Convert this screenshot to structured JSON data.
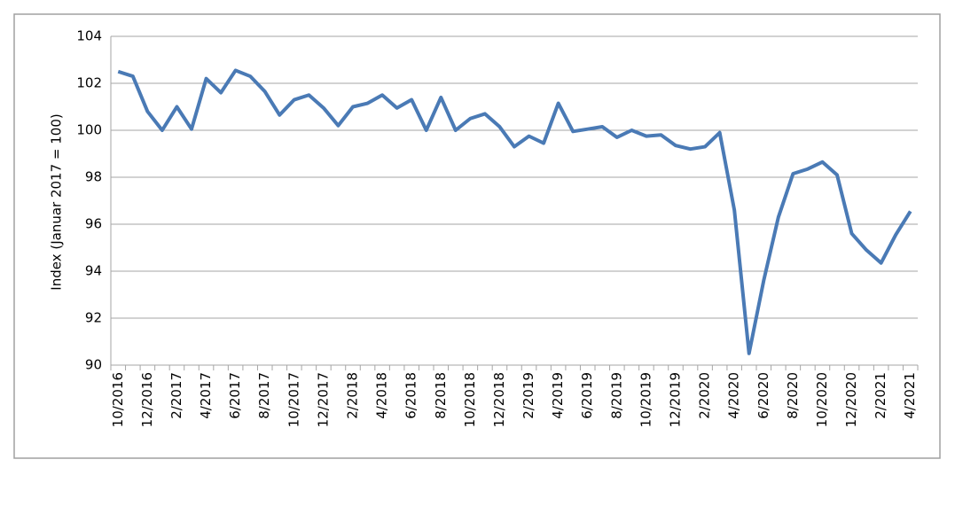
{
  "chart_data": {
    "type": "line",
    "y_label": "Index (Januar 2017 = 100)",
    "categories": [
      "10/2016",
      null,
      "12/2016",
      null,
      "2/2017",
      null,
      "4/2017",
      null,
      "6/2017",
      null,
      "8/2017",
      null,
      "10/2017",
      null,
      "12/2017",
      null,
      "2/2018",
      null,
      "4/2018",
      null,
      "6/2018",
      null,
      "8/2018",
      null,
      "10/2018",
      null,
      "12/2018",
      null,
      "2/2019",
      null,
      "4/2019",
      null,
      "6/2019",
      null,
      "8/2019",
      null,
      "10/2019",
      null,
      "12/2019",
      null,
      "2/2020",
      null,
      "4/2020",
      null,
      "6/2020",
      null,
      "8/2020",
      null,
      "10/2020",
      null,
      "12/2020",
      null,
      "2/2021",
      null,
      "4/2021"
    ],
    "values": [
      102.5,
      102.3,
      100.8,
      100.0,
      101.0,
      100.05,
      102.2,
      101.6,
      102.55,
      102.3,
      101.65,
      100.65,
      101.3,
      101.5,
      100.95,
      100.2,
      101.0,
      101.15,
      101.5,
      100.95,
      101.3,
      100.0,
      101.4,
      100.0,
      100.5,
      100.7,
      100.15,
      99.3,
      99.75,
      99.45,
      101.15,
      99.95,
      100.05,
      100.15,
      99.7,
      100.0,
      99.75,
      99.8,
      99.35,
      99.2,
      99.3,
      99.9,
      96.6,
      90.5,
      93.6,
      96.3,
      98.15,
      98.35,
      98.65,
      98.1,
      95.6,
      94.9,
      94.35,
      95.55,
      96.55
    ],
    "color": "#4a7ab5",
    "ylim": [
      90,
      104
    ],
    "yticks": [
      90,
      92,
      94,
      96,
      98,
      100,
      102,
      104
    ],
    "grid": true
  }
}
